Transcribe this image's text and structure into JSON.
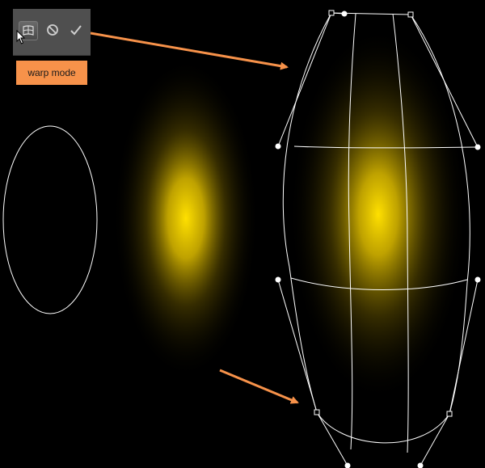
{
  "toolbar": {
    "warp_mode_icon": "warp-mode-icon",
    "cancel_icon": "cancel-transform-icon",
    "commit_icon": "commit-transform-icon",
    "cursor_icon": "pointer-cursor-icon"
  },
  "callout": {
    "label": "warp mode"
  },
  "colors": {
    "background": "#000000",
    "toolbar_bg": "#4f4f4f",
    "callout_bg": "#f7924a",
    "arrow": "#f7924a",
    "glow_core": "#ffe000",
    "outline": "#ffffff"
  }
}
